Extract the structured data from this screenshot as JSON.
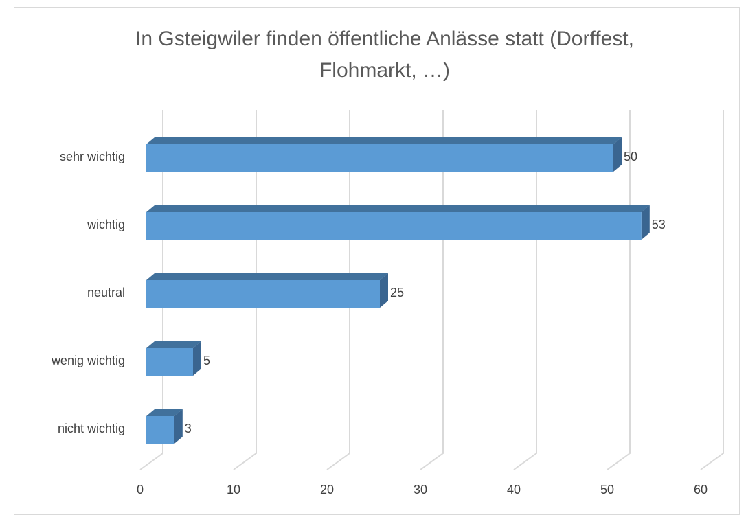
{
  "chart_data": {
    "type": "bar",
    "orientation": "horizontal",
    "title": "In Gsteigwiler finden öffentliche Anlässe statt (Dorffest, Flohmarkt, …)",
    "categories": [
      "sehr wichtig",
      "wichtig",
      "neutral",
      "wenig wichtig",
      "nicht wichtig"
    ],
    "values": [
      50,
      53,
      25,
      5,
      3
    ],
    "color": "#5b9bd5",
    "xlim": [
      0,
      60
    ],
    "xticks": [
      0,
      10,
      20,
      30,
      40,
      50,
      60
    ],
    "grid": true,
    "data_labels": true
  }
}
